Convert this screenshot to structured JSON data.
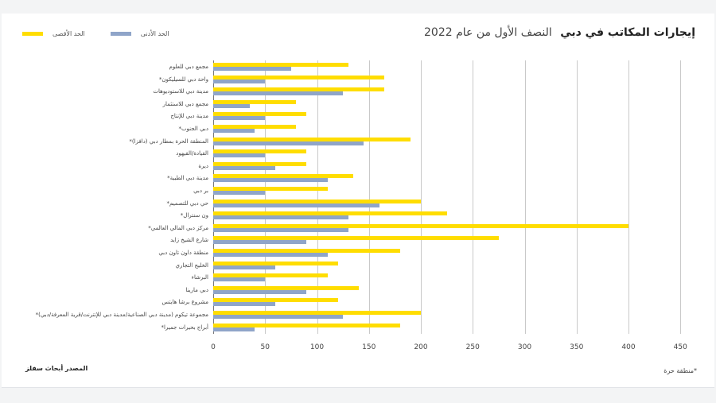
{
  "header": {
    "title_bold": "إيجارات المكاتب في دبي",
    "title_light": "النصف الأول من عام 2022"
  },
  "legend": [
    {
      "label": "الحد الأقصى",
      "color": "#FFDD00"
    },
    {
      "label": "الحد الأدنى",
      "color": "#8FA5C9"
    }
  ],
  "footer": {
    "source": "المصدر أبحاث سفلز",
    "note": "*منطقة حرة"
  },
  "chart_data": {
    "type": "bar",
    "orientation": "horizontal",
    "title": "إيجارات المكاتب في دبي النصف الأول من عام 2022",
    "xlabel": "",
    "ylabel": "",
    "xlim": [
      0,
      450
    ],
    "x_ticks": [
      0,
      50,
      100,
      150,
      200,
      250,
      300,
      350,
      400,
      450
    ],
    "grid": true,
    "legend_position": "top-left",
    "categories": [
      "مجمع دبي للعلوم",
      "واحة دبي للسيليكون*",
      "مدينة دبي للاستوديوهات",
      "مجمع دبي للاستثمار",
      "مدينة دبي للإنتاج",
      "دبي الجنوب*",
      "المنطقة الحرة بمطار دبي (دافزا)*",
      "القيادة/القيهود",
      "ديرة",
      "مدينة دبي الطبية*",
      "بر دبي",
      "حي دبي للتصميم*",
      "ون سنترال*",
      "مركز دبي المالي العالمي*",
      "شارع الشيخ زايد",
      "منطقة داون تاون دبي",
      "الخليج التجاري",
      "البرشاء",
      "دبي مارينا",
      "مشروع برشا هايتس",
      "مجموعة تيكوم (مدينة دبي الصناعية/مدينة دبي للإنترنت/قرية المعرفة/دبي)*",
      "أبراج بحيرات جميرا*"
    ],
    "series": [
      {
        "name": "الحد الأقصى",
        "color": "#FFDD00",
        "values": [
          130,
          165,
          165,
          80,
          90,
          80,
          190,
          90,
          90,
          135,
          110,
          200,
          225,
          400,
          275,
          180,
          120,
          110,
          140,
          120,
          200,
          180
        ]
      },
      {
        "name": "الحد الأدنى",
        "color": "#8FA5C9",
        "values": [
          75,
          50,
          125,
          35,
          50,
          40,
          145,
          50,
          60,
          110,
          50,
          160,
          130,
          130,
          90,
          110,
          60,
          50,
          90,
          60,
          125,
          40
        ]
      }
    ]
  }
}
